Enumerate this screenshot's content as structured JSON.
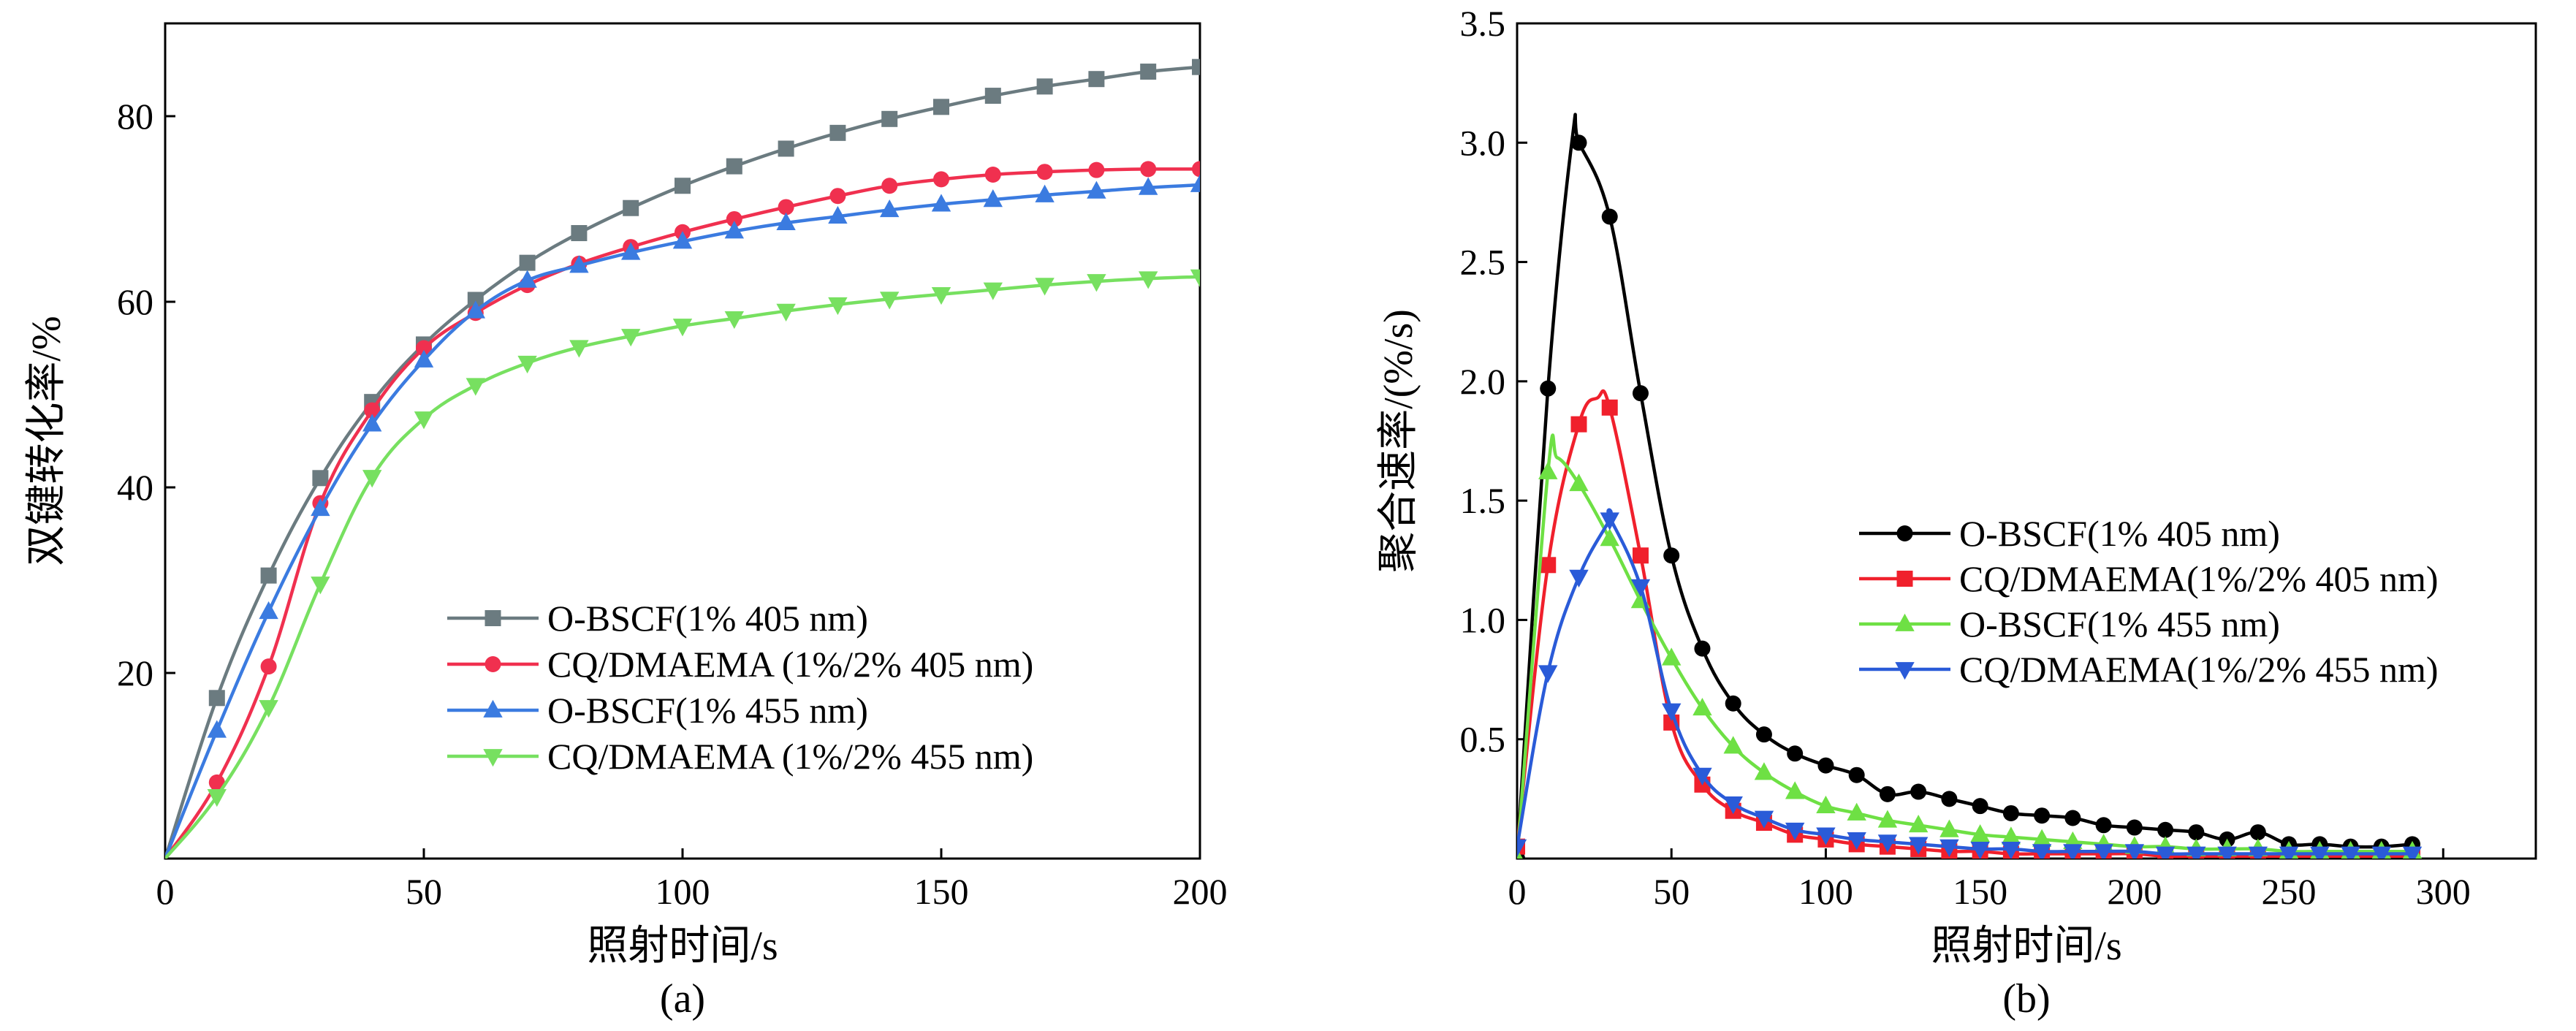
{
  "chart_data": [
    {
      "id": "a",
      "type": "line",
      "caption": "(a)",
      "xlabel": "照射时间/s",
      "ylabel": "双键转化率/%",
      "xlim": [
        0,
        200
      ],
      "ylim": [
        0,
        90
      ],
      "xticks": [
        0,
        50,
        100,
        150,
        200
      ],
      "yticks": [
        20,
        40,
        60,
        80
      ],
      "grid": false,
      "legend_position": "bottom-right",
      "series": [
        {
          "name": "O-BSCF(1% 405 nm)",
          "color": "#6b7b80",
          "marker": "square",
          "x": [
            0,
            10,
            20,
            30,
            40,
            50,
            60,
            70,
            80,
            90,
            100,
            110,
            120,
            130,
            140,
            150,
            160,
            170,
            180,
            190,
            200
          ],
          "y": [
            0,
            17.3,
            30.5,
            41,
            49.2,
            55.4,
            60.2,
            64.2,
            67.4,
            70.1,
            72.5,
            74.6,
            76.5,
            78.2,
            79.7,
            81,
            82.2,
            83.2,
            84,
            84.8,
            85.3
          ]
        },
        {
          "name": "CQ/DMAEMA (1%/2% 405 nm)",
          "color": "#f0304f",
          "marker": "circle",
          "x": [
            0,
            10,
            20,
            30,
            40,
            50,
            60,
            70,
            80,
            90,
            100,
            110,
            120,
            130,
            140,
            150,
            160,
            170,
            180,
            190,
            200
          ],
          "y": [
            0,
            8.2,
            20.7,
            38.3,
            48.3,
            55,
            58.8,
            61.8,
            64.1,
            65.9,
            67.5,
            68.9,
            70.2,
            71.4,
            72.5,
            73.2,
            73.7,
            74,
            74.2,
            74.3,
            74.3
          ]
        },
        {
          "name": "O-BSCF(1% 455 nm)",
          "color": "#3b7be0",
          "marker": "triangle-up",
          "x": [
            0,
            10,
            20,
            30,
            40,
            50,
            60,
            70,
            80,
            90,
            100,
            110,
            120,
            130,
            140,
            150,
            160,
            170,
            180,
            190,
            200
          ],
          "y": [
            0,
            13.8,
            26.6,
            37.7,
            46.8,
            53.7,
            59,
            62.3,
            63.9,
            65.3,
            66.5,
            67.6,
            68.5,
            69.2,
            69.9,
            70.5,
            71,
            71.5,
            71.9,
            72.3,
            72.6
          ]
        },
        {
          "name": "CQ/DMAEMA (1%/2% 455 nm)",
          "color": "#77e060",
          "marker": "triangle-down",
          "x": [
            0,
            10,
            20,
            30,
            40,
            50,
            60,
            70,
            80,
            90,
            100,
            110,
            120,
            130,
            140,
            150,
            160,
            170,
            180,
            190,
            200
          ],
          "y": [
            0,
            6.7,
            16.3,
            29.6,
            41.1,
            47.4,
            51,
            53.4,
            55.1,
            56.3,
            57.4,
            58.2,
            59,
            59.7,
            60.3,
            60.8,
            61.3,
            61.8,
            62.2,
            62.5,
            62.7
          ]
        }
      ]
    },
    {
      "id": "b",
      "type": "line",
      "caption": "(b)",
      "xlabel": "照射时间/s",
      "ylabel": "聚合速率/(%/s)",
      "xlim": [
        0,
        330
      ],
      "ylim": [
        0,
        3.5
      ],
      "xticks": [
        0,
        50,
        100,
        150,
        200,
        250,
        300
      ],
      "yticks": [
        0.5,
        1.0,
        1.5,
        2.0,
        2.5,
        3.0,
        3.5
      ],
      "ytick_labels": [
        "0.5",
        "1.0",
        "1.5",
        "2.0",
        "2.5",
        "3.0",
        "3.5"
      ],
      "grid": false,
      "legend_position": "center-right",
      "series": [
        {
          "name": "O-BSCF(1% 405 nm)",
          "color": "#000000",
          "marker": "circle",
          "x": [
            0,
            10,
            20,
            30,
            40,
            50,
            60,
            70,
            80,
            90,
            100,
            110,
            120,
            130,
            140,
            150,
            160,
            170,
            180,
            190,
            200,
            210,
            220,
            230,
            240,
            250,
            260,
            270,
            280,
            290
          ],
          "y": [
            0,
            1.97,
            3.0,
            2.69,
            1.95,
            1.27,
            0.88,
            0.65,
            0.52,
            0.44,
            0.39,
            0.35,
            0.27,
            0.28,
            0.25,
            0.22,
            0.19,
            0.18,
            0.17,
            0.14,
            0.13,
            0.12,
            0.11,
            0.08,
            0.11,
            0.06,
            0.06,
            0.05,
            0.05,
            0.06
          ],
          "curve_peak": [
            18,
            3.03
          ]
        },
        {
          "name": "CQ/DMAEMA(1%/2% 405 nm)",
          "color": "#f0202c",
          "marker": "square",
          "x": [
            0,
            10,
            20,
            30,
            40,
            50,
            60,
            70,
            80,
            90,
            100,
            110,
            120,
            130,
            140,
            150,
            160,
            170,
            180,
            190,
            200,
            210,
            220,
            230,
            240,
            250,
            260,
            270,
            280,
            290
          ],
          "y": [
            0.05,
            1.23,
            1.82,
            1.89,
            1.27,
            0.57,
            0.31,
            0.2,
            0.15,
            0.1,
            0.08,
            0.06,
            0.05,
            0.04,
            0.03,
            0.03,
            0.02,
            0.02,
            0.02,
            0.02,
            0.02,
            0.01,
            0.01,
            0.01,
            0.01,
            0.01,
            0.01,
            0.01,
            0.01,
            0.01
          ],
          "curve_peak": [
            26,
            1.93
          ]
        },
        {
          "name": "O-BSCF(1% 455 nm)",
          "color": "#6ee044",
          "marker": "triangle-up",
          "x": [
            0,
            10,
            20,
            30,
            40,
            50,
            60,
            70,
            80,
            90,
            100,
            110,
            120,
            130,
            140,
            150,
            160,
            170,
            180,
            190,
            200,
            210,
            220,
            230,
            240,
            250,
            260,
            270,
            280,
            290
          ],
          "y": [
            0,
            1.62,
            1.57,
            1.34,
            1.08,
            0.84,
            0.63,
            0.47,
            0.36,
            0.28,
            0.22,
            0.19,
            0.16,
            0.14,
            0.12,
            0.1,
            0.09,
            0.08,
            0.07,
            0.06,
            0.05,
            0.05,
            0.04,
            0.04,
            0.04,
            0.03,
            0.03,
            0.03,
            0.03,
            0.03
          ],
          "curve_peak": [
            13,
            1.68
          ]
        },
        {
          "name": "CQ/DMAEMA(1%/2% 455 nm)",
          "color": "#2a5bd8",
          "marker": "triangle-down",
          "x": [
            0,
            10,
            20,
            30,
            40,
            50,
            60,
            70,
            80,
            90,
            100,
            110,
            120,
            130,
            140,
            150,
            160,
            170,
            180,
            190,
            200,
            210,
            220,
            230,
            240,
            250,
            260,
            270,
            280,
            290
          ],
          "y": [
            0.05,
            0.78,
            1.18,
            1.42,
            1.14,
            0.62,
            0.35,
            0.23,
            0.17,
            0.12,
            0.1,
            0.08,
            0.07,
            0.06,
            0.05,
            0.04,
            0.04,
            0.03,
            0.03,
            0.03,
            0.03,
            0.02,
            0.02,
            0.02,
            0.02,
            0.02,
            0.02,
            0.02,
            0.02,
            0.02
          ],
          "curve_peak": [
            30,
            1.43
          ]
        }
      ]
    }
  ]
}
